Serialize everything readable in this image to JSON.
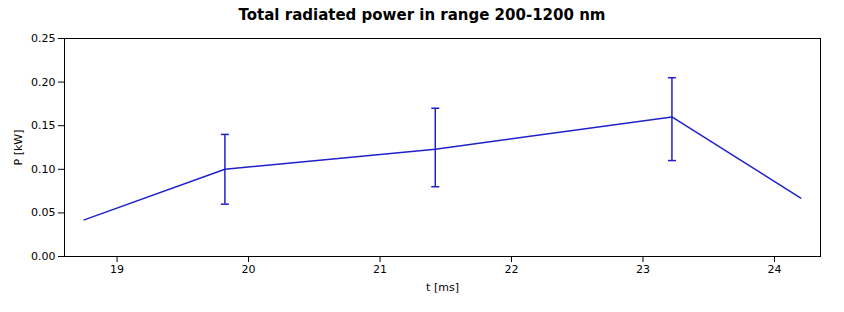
{
  "chart_data": {
    "type": "line",
    "title": "Total radiated power in range 200-1200 nm",
    "xlabel": "t [ms]",
    "ylabel": "P [kW]",
    "x": [
      18.75,
      19.82,
      21.42,
      23.22,
      24.2
    ],
    "series": [
      {
        "name": "P",
        "color": "#2020cc",
        "values": [
          0.042,
          0.1,
          0.123,
          0.16,
          0.067
        ],
        "error_upper": [
          0.0,
          0.04,
          0.047,
          0.045,
          0.0
        ],
        "error_lower": [
          0.0,
          0.04,
          0.043,
          0.05,
          0.0
        ]
      }
    ],
    "xlim": [
      18.6,
      24.35
    ],
    "ylim": [
      0.0,
      0.25
    ],
    "xticks": [
      19,
      20,
      21,
      22,
      23,
      24
    ],
    "yticks": [
      {
        "value": 0.0,
        "label": "0.00"
      },
      {
        "value": 0.05,
        "label": "0.05"
      },
      {
        "value": 0.1,
        "label": "0.10"
      },
      {
        "value": 0.15,
        "label": "0.15"
      },
      {
        "value": 0.2,
        "label": "0.20"
      },
      {
        "value": 0.25,
        "label": "0.25"
      }
    ],
    "grid": false
  }
}
